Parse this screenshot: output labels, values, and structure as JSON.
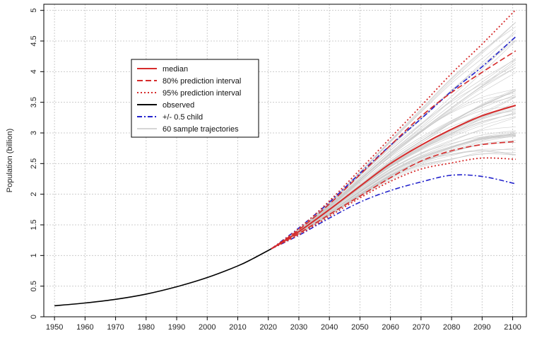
{
  "chart_data": {
    "type": "line",
    "title": "",
    "xlabel": "",
    "ylabel": "Population (billion)",
    "xlim": [
      1946.5,
      2104.5
    ],
    "ylim": [
      0,
      5.1
    ],
    "x_ticks": [
      1950,
      1960,
      1970,
      1980,
      1990,
      2000,
      2010,
      2020,
      2030,
      2040,
      2050,
      2060,
      2070,
      2080,
      2090,
      2100
    ],
    "y_ticks": [
      0,
      0.5,
      1,
      1.5,
      2,
      2.5,
      3,
      3.5,
      4,
      4.5,
      5
    ],
    "grid": true,
    "legend_position": "top-left",
    "colors": {
      "observed": "#000000",
      "median": "#d62b2b",
      "pi80": "#d62b2b",
      "pi95": "#d62b2b",
      "half_child": "#2222cc",
      "trajectories": "#c8c8c8",
      "grid": "#cccccc"
    },
    "legend": [
      {
        "label": "median",
        "style": "solid",
        "color": "#d62b2b"
      },
      {
        "label": "80% prediction interval",
        "style": "dashed",
        "color": "#d62b2b"
      },
      {
        "label": "95% prediction interval",
        "style": "dotted",
        "color": "#d62b2b"
      },
      {
        "label": "observed",
        "style": "solid",
        "color": "#000000"
      },
      {
        "label": "+/- 0.5 child",
        "style": "dashdot",
        "color": "#2222cc"
      },
      {
        "label": "60 sample trajectories",
        "style": "solid",
        "color": "#c8c8c8"
      }
    ],
    "observed": {
      "x": [
        1950,
        1960,
        1970,
        1980,
        1990,
        2000,
        2010,
        2015,
        2021
      ],
      "y": [
        0.18,
        0.225,
        0.285,
        0.37,
        0.49,
        0.64,
        0.83,
        0.95,
        1.11
      ]
    },
    "forecast_x": [
      2021,
      2030,
      2040,
      2050,
      2060,
      2070,
      2080,
      2090,
      2101
    ],
    "median": [
      1.11,
      1.39,
      1.75,
      2.13,
      2.5,
      2.8,
      3.06,
      3.28,
      3.45
    ],
    "pi80_upper": [
      1.11,
      1.42,
      1.84,
      2.32,
      2.8,
      3.27,
      3.66,
      3.99,
      4.34
    ],
    "pi80_lower": [
      1.11,
      1.36,
      1.67,
      1.97,
      2.27,
      2.54,
      2.71,
      2.81,
      2.86
    ],
    "pi95_upper": [
      1.11,
      1.44,
      1.89,
      2.4,
      2.92,
      3.44,
      3.97,
      4.45,
      5.01
    ],
    "pi95_lower": [
      1.11,
      1.34,
      1.64,
      1.94,
      2.21,
      2.41,
      2.51,
      2.59,
      2.57
    ],
    "half_child_upper": [
      1.11,
      1.45,
      1.87,
      2.34,
      2.8,
      3.23,
      3.68,
      4.08,
      4.57
    ],
    "half_child_lower": [
      1.11,
      1.33,
      1.61,
      1.87,
      2.06,
      2.2,
      2.31,
      2.29,
      2.17
    ],
    "sample_trajectories_count": 60
  }
}
